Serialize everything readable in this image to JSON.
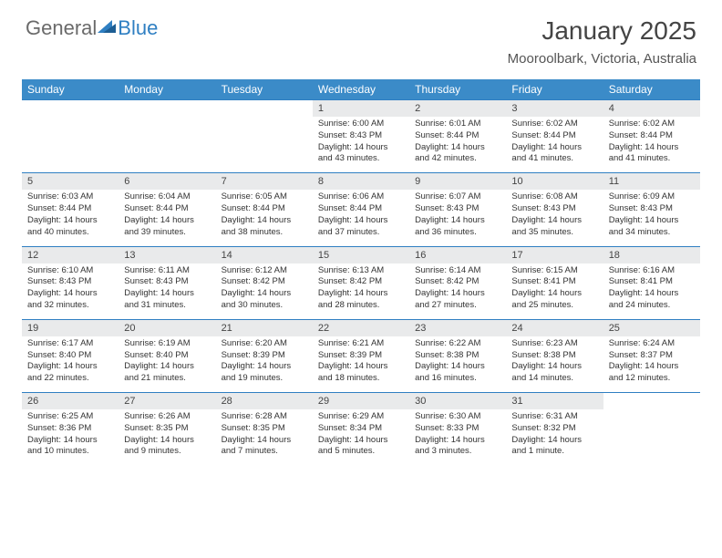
{
  "logo": {
    "text_general": "General",
    "text_blue": "Blue"
  },
  "title": "January 2025",
  "location": "Mooroolbark, Victoria, Australia",
  "colors": {
    "header_bar": "#3b8bc8",
    "row_divider": "#2f7fc2",
    "daynum_bg": "#e9eaeb",
    "text": "#333333"
  },
  "days_of_week": [
    "Sunday",
    "Monday",
    "Tuesday",
    "Wednesday",
    "Thursday",
    "Friday",
    "Saturday"
  ],
  "weeks": [
    [
      {
        "num": "",
        "lines": [
          "",
          "",
          "",
          ""
        ]
      },
      {
        "num": "",
        "lines": [
          "",
          "",
          "",
          ""
        ]
      },
      {
        "num": "",
        "lines": [
          "",
          "",
          "",
          ""
        ]
      },
      {
        "num": "1",
        "lines": [
          "Sunrise: 6:00 AM",
          "Sunset: 8:43 PM",
          "Daylight: 14 hours",
          "and 43 minutes."
        ]
      },
      {
        "num": "2",
        "lines": [
          "Sunrise: 6:01 AM",
          "Sunset: 8:44 PM",
          "Daylight: 14 hours",
          "and 42 minutes."
        ]
      },
      {
        "num": "3",
        "lines": [
          "Sunrise: 6:02 AM",
          "Sunset: 8:44 PM",
          "Daylight: 14 hours",
          "and 41 minutes."
        ]
      },
      {
        "num": "4",
        "lines": [
          "Sunrise: 6:02 AM",
          "Sunset: 8:44 PM",
          "Daylight: 14 hours",
          "and 41 minutes."
        ]
      }
    ],
    [
      {
        "num": "5",
        "lines": [
          "Sunrise: 6:03 AM",
          "Sunset: 8:44 PM",
          "Daylight: 14 hours",
          "and 40 minutes."
        ]
      },
      {
        "num": "6",
        "lines": [
          "Sunrise: 6:04 AM",
          "Sunset: 8:44 PM",
          "Daylight: 14 hours",
          "and 39 minutes."
        ]
      },
      {
        "num": "7",
        "lines": [
          "Sunrise: 6:05 AM",
          "Sunset: 8:44 PM",
          "Daylight: 14 hours",
          "and 38 minutes."
        ]
      },
      {
        "num": "8",
        "lines": [
          "Sunrise: 6:06 AM",
          "Sunset: 8:44 PM",
          "Daylight: 14 hours",
          "and 37 minutes."
        ]
      },
      {
        "num": "9",
        "lines": [
          "Sunrise: 6:07 AM",
          "Sunset: 8:43 PM",
          "Daylight: 14 hours",
          "and 36 minutes."
        ]
      },
      {
        "num": "10",
        "lines": [
          "Sunrise: 6:08 AM",
          "Sunset: 8:43 PM",
          "Daylight: 14 hours",
          "and 35 minutes."
        ]
      },
      {
        "num": "11",
        "lines": [
          "Sunrise: 6:09 AM",
          "Sunset: 8:43 PM",
          "Daylight: 14 hours",
          "and 34 minutes."
        ]
      }
    ],
    [
      {
        "num": "12",
        "lines": [
          "Sunrise: 6:10 AM",
          "Sunset: 8:43 PM",
          "Daylight: 14 hours",
          "and 32 minutes."
        ]
      },
      {
        "num": "13",
        "lines": [
          "Sunrise: 6:11 AM",
          "Sunset: 8:43 PM",
          "Daylight: 14 hours",
          "and 31 minutes."
        ]
      },
      {
        "num": "14",
        "lines": [
          "Sunrise: 6:12 AM",
          "Sunset: 8:42 PM",
          "Daylight: 14 hours",
          "and 30 minutes."
        ]
      },
      {
        "num": "15",
        "lines": [
          "Sunrise: 6:13 AM",
          "Sunset: 8:42 PM",
          "Daylight: 14 hours",
          "and 28 minutes."
        ]
      },
      {
        "num": "16",
        "lines": [
          "Sunrise: 6:14 AM",
          "Sunset: 8:42 PM",
          "Daylight: 14 hours",
          "and 27 minutes."
        ]
      },
      {
        "num": "17",
        "lines": [
          "Sunrise: 6:15 AM",
          "Sunset: 8:41 PM",
          "Daylight: 14 hours",
          "and 25 minutes."
        ]
      },
      {
        "num": "18",
        "lines": [
          "Sunrise: 6:16 AM",
          "Sunset: 8:41 PM",
          "Daylight: 14 hours",
          "and 24 minutes."
        ]
      }
    ],
    [
      {
        "num": "19",
        "lines": [
          "Sunrise: 6:17 AM",
          "Sunset: 8:40 PM",
          "Daylight: 14 hours",
          "and 22 minutes."
        ]
      },
      {
        "num": "20",
        "lines": [
          "Sunrise: 6:19 AM",
          "Sunset: 8:40 PM",
          "Daylight: 14 hours",
          "and 21 minutes."
        ]
      },
      {
        "num": "21",
        "lines": [
          "Sunrise: 6:20 AM",
          "Sunset: 8:39 PM",
          "Daylight: 14 hours",
          "and 19 minutes."
        ]
      },
      {
        "num": "22",
        "lines": [
          "Sunrise: 6:21 AM",
          "Sunset: 8:39 PM",
          "Daylight: 14 hours",
          "and 18 minutes."
        ]
      },
      {
        "num": "23",
        "lines": [
          "Sunrise: 6:22 AM",
          "Sunset: 8:38 PM",
          "Daylight: 14 hours",
          "and 16 minutes."
        ]
      },
      {
        "num": "24",
        "lines": [
          "Sunrise: 6:23 AM",
          "Sunset: 8:38 PM",
          "Daylight: 14 hours",
          "and 14 minutes."
        ]
      },
      {
        "num": "25",
        "lines": [
          "Sunrise: 6:24 AM",
          "Sunset: 8:37 PM",
          "Daylight: 14 hours",
          "and 12 minutes."
        ]
      }
    ],
    [
      {
        "num": "26",
        "lines": [
          "Sunrise: 6:25 AM",
          "Sunset: 8:36 PM",
          "Daylight: 14 hours",
          "and 10 minutes."
        ]
      },
      {
        "num": "27",
        "lines": [
          "Sunrise: 6:26 AM",
          "Sunset: 8:35 PM",
          "Daylight: 14 hours",
          "and 9 minutes."
        ]
      },
      {
        "num": "28",
        "lines": [
          "Sunrise: 6:28 AM",
          "Sunset: 8:35 PM",
          "Daylight: 14 hours",
          "and 7 minutes."
        ]
      },
      {
        "num": "29",
        "lines": [
          "Sunrise: 6:29 AM",
          "Sunset: 8:34 PM",
          "Daylight: 14 hours",
          "and 5 minutes."
        ]
      },
      {
        "num": "30",
        "lines": [
          "Sunrise: 6:30 AM",
          "Sunset: 8:33 PM",
          "Daylight: 14 hours",
          "and 3 minutes."
        ]
      },
      {
        "num": "31",
        "lines": [
          "Sunrise: 6:31 AM",
          "Sunset: 8:32 PM",
          "Daylight: 14 hours",
          "and 1 minute."
        ]
      },
      {
        "num": "",
        "lines": [
          "",
          "",
          "",
          ""
        ]
      }
    ]
  ]
}
